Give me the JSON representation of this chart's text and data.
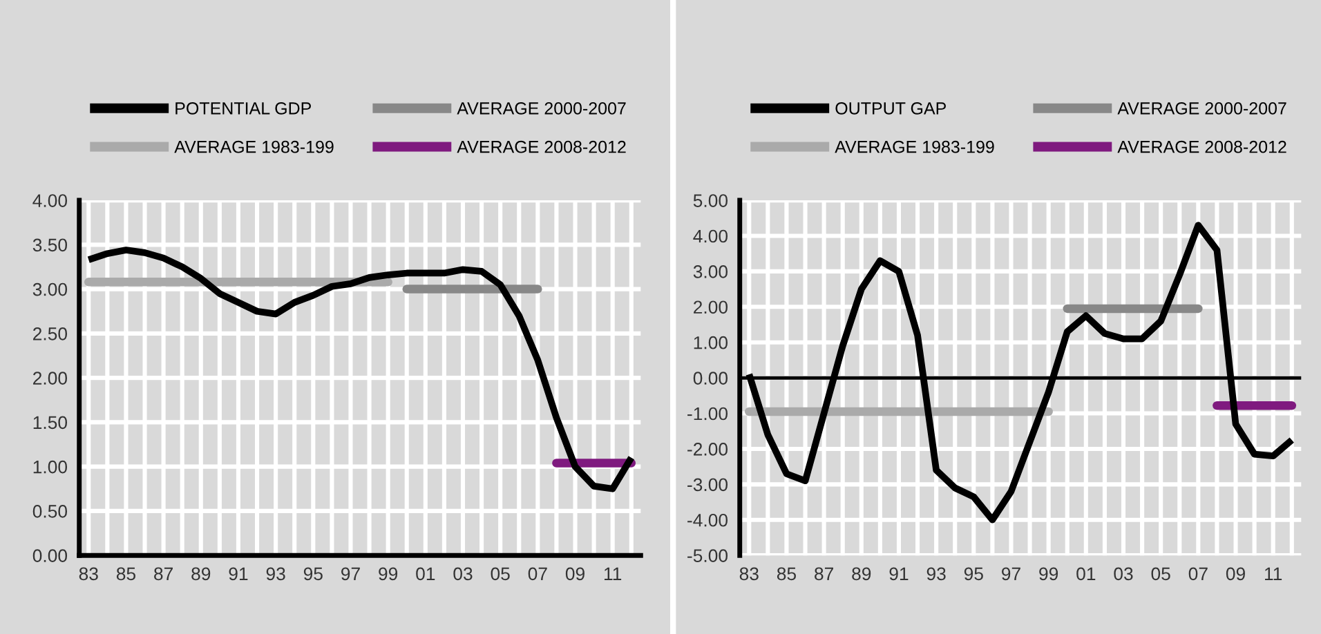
{
  "chart_data": [
    {
      "type": "line",
      "categories": [
        "83",
        null,
        "85",
        null,
        "87",
        null,
        "89",
        null,
        "91",
        null,
        "93",
        null,
        "95",
        null,
        "97",
        null,
        "99",
        null,
        "01",
        null,
        "03",
        null,
        "05",
        null,
        "07",
        null,
        "09",
        null,
        "11",
        null
      ],
      "series": [
        {
          "name": "POTENTIAL GDP",
          "color": "#000000",
          "values": [
            3.33,
            3.4,
            3.44,
            3.41,
            3.35,
            3.25,
            3.12,
            2.95,
            2.85,
            2.75,
            2.72,
            2.85,
            2.93,
            3.03,
            3.06,
            3.13,
            3.16,
            3.18,
            3.18,
            3.18,
            3.22,
            3.2,
            3.05,
            2.7,
            2.2,
            1.55,
            1.0,
            0.78,
            0.75,
            1.1
          ]
        },
        {
          "name": "AVERAGE 1983-199",
          "color": "#aaaaaa",
          "values": [
            3.08,
            3.08,
            3.08,
            3.08,
            3.08,
            3.08,
            3.08,
            3.08,
            3.08,
            3.08,
            3.08,
            3.08,
            3.08,
            3.08,
            3.08,
            3.08,
            3.08,
            null,
            null,
            null,
            null,
            null,
            null,
            null,
            null,
            null,
            null,
            null,
            null,
            null
          ]
        },
        {
          "name": "AVERAGE 2000-2007",
          "color": "#888888",
          "values": [
            null,
            null,
            null,
            null,
            null,
            null,
            null,
            null,
            null,
            null,
            null,
            null,
            null,
            null,
            null,
            null,
            null,
            3.0,
            3.0,
            3.0,
            3.0,
            3.0,
            3.0,
            3.0,
            3.0,
            null,
            null,
            null,
            null,
            null
          ]
        },
        {
          "name": "AVERAGE 2008-2012",
          "color": "#7f1a7f",
          "values": [
            null,
            null,
            null,
            null,
            null,
            null,
            null,
            null,
            null,
            null,
            null,
            null,
            null,
            null,
            null,
            null,
            null,
            null,
            null,
            null,
            null,
            null,
            null,
            null,
            null,
            1.04,
            1.04,
            1.04,
            1.04,
            1.04
          ]
        }
      ],
      "ylim": [
        0,
        4
      ],
      "yticks": [
        {
          "value": 0,
          "label": "0.00"
        },
        {
          "value": 0.5,
          "label": "0.50"
        },
        {
          "value": 1,
          "label": "1.00"
        },
        {
          "value": 1.5,
          "label": "1.50"
        },
        {
          "value": 2,
          "label": "2.00"
        },
        {
          "value": 2.5,
          "label": "2.50"
        },
        {
          "value": 3,
          "label": "3.00"
        },
        {
          "value": 3.5,
          "label": "3.50"
        },
        {
          "value": 4,
          "label": "4.00"
        }
      ],
      "grid": true,
      "legend": "top",
      "marker": "none",
      "line_style": "solid"
    },
    {
      "type": "line",
      "categories": [
        "83",
        null,
        "85",
        null,
        "87",
        null,
        "89",
        null,
        "91",
        null,
        "93",
        null,
        "95",
        null,
        "97",
        null,
        "99",
        null,
        "01",
        null,
        "03",
        null,
        "05",
        null,
        "07",
        null,
        "09",
        null,
        "11",
        null
      ],
      "series": [
        {
          "name": "OUTPUT GAP",
          "color": "#000000",
          "values": [
            0.1,
            -1.6,
            -2.7,
            -2.9,
            -1.0,
            0.9,
            2.5,
            3.3,
            3.0,
            1.2,
            -2.6,
            -3.1,
            -3.35,
            -4.0,
            -3.2,
            -1.8,
            -0.4,
            1.3,
            1.75,
            1.25,
            1.1,
            1.1,
            1.6,
            2.9,
            4.3,
            3.6,
            -1.3,
            -2.15,
            -2.2,
            -1.75
          ]
        },
        {
          "name": "AVERAGE 1983-199",
          "color": "#aaaaaa",
          "values": [
            -0.95,
            -0.95,
            -0.95,
            -0.95,
            -0.95,
            -0.95,
            -0.95,
            -0.95,
            -0.95,
            -0.95,
            -0.95,
            -0.95,
            -0.95,
            -0.95,
            -0.95,
            -0.95,
            -0.95,
            null,
            null,
            null,
            null,
            null,
            null,
            null,
            null,
            null,
            null,
            null,
            null,
            null
          ]
        },
        {
          "name": "AVERAGE 2000-2007",
          "color": "#888888",
          "values": [
            null,
            null,
            null,
            null,
            null,
            null,
            null,
            null,
            null,
            null,
            null,
            null,
            null,
            null,
            null,
            null,
            null,
            1.95,
            1.95,
            1.95,
            1.95,
            1.95,
            1.95,
            1.95,
            1.95,
            null,
            null,
            null,
            null,
            null
          ]
        },
        {
          "name": "AVERAGE 2008-2012",
          "color": "#7f1a7f",
          "values": [
            null,
            null,
            null,
            null,
            null,
            null,
            null,
            null,
            null,
            null,
            null,
            null,
            null,
            null,
            null,
            null,
            null,
            null,
            null,
            null,
            null,
            null,
            null,
            null,
            null,
            -0.78,
            -0.78,
            -0.78,
            -0.78,
            -0.78
          ]
        }
      ],
      "ylim": [
        -5,
        5
      ],
      "yticks": [
        {
          "value": -5,
          "label": "-5.00"
        },
        {
          "value": -4,
          "label": "-4.00"
        },
        {
          "value": -3,
          "label": "-3.00"
        },
        {
          "value": -2,
          "label": "-2.00"
        },
        {
          "value": -1,
          "label": "-1.00"
        },
        {
          "value": 0,
          "label": "0.00"
        },
        {
          "value": 1,
          "label": "1.00"
        },
        {
          "value": 2,
          "label": "2.00"
        },
        {
          "value": 3,
          "label": "3.00"
        },
        {
          "value": 4,
          "label": "4.00"
        },
        {
          "value": 5,
          "label": "5.00"
        }
      ],
      "ref_lines": [
        {
          "axis": "y",
          "value": 0,
          "color": "#000000"
        }
      ],
      "grid": true,
      "legend": "top",
      "marker": "none",
      "line_style": "solid"
    }
  ]
}
